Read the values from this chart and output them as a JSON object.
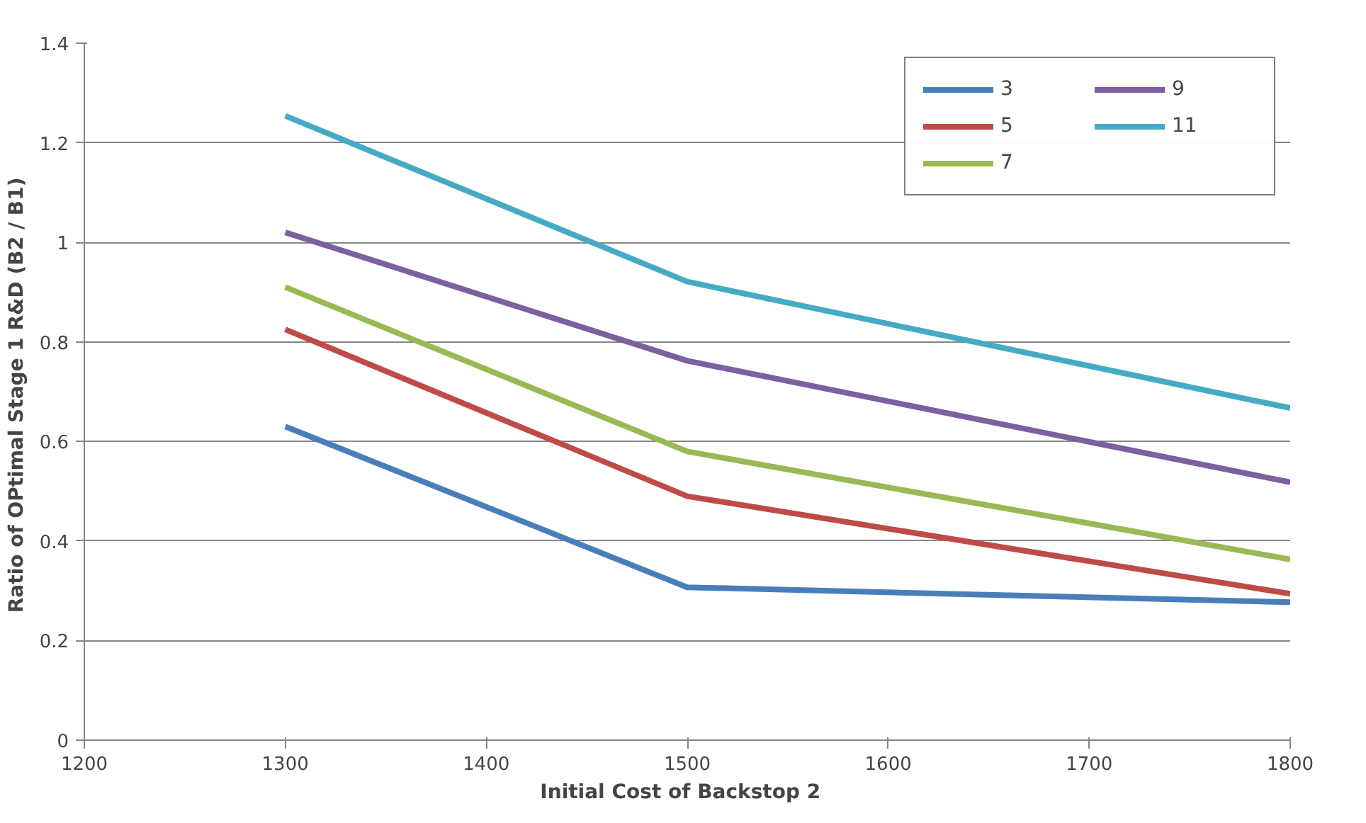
{
  "chart_data": {
    "type": "line",
    "xlabel": "Initial  Cost of Backstop  2",
    "ylabel": "Ratio of OPtimal Stage  1 R&D (B2 / B1)",
    "x": [
      1300,
      1500,
      1800
    ],
    "series": [
      {
        "name": "3",
        "color": "#4a7ebb",
        "values": [
          0.63,
          0.307,
          0.277
        ]
      },
      {
        "name": "5",
        "color": "#be4b48",
        "values": [
          0.825,
          0.49,
          0.294
        ]
      },
      {
        "name": "7",
        "color": "#98b954",
        "values": [
          0.91,
          0.58,
          0.363
        ]
      },
      {
        "name": "9",
        "color": "#7d60a0",
        "values": [
          1.02,
          0.762,
          0.518
        ]
      },
      {
        "name": "11",
        "color": "#46aac5",
        "values": [
          1.254,
          0.921,
          0.667
        ]
      }
    ],
    "xlim": [
      1200,
      1800
    ],
    "xticks": [
      1200,
      1300,
      1400,
      1500,
      1600,
      1700,
      1800
    ],
    "ylim": [
      0,
      1.4
    ],
    "yticks": [
      0,
      {
        "value": 0.2,
        "label": "0.2"
      },
      {
        "value": 0.4,
        "label": "0.4"
      },
      {
        "value": 0.6,
        "label": "0.6"
      },
      {
        "value": 0.8,
        "label": "0.8"
      },
      1,
      {
        "value": 1.2,
        "label": "1.2"
      },
      {
        "value": 1.4,
        "label": "1.4"
      }
    ],
    "grid": "y",
    "legend": "top right",
    "marker": "none",
    "line_style": "solid"
  }
}
